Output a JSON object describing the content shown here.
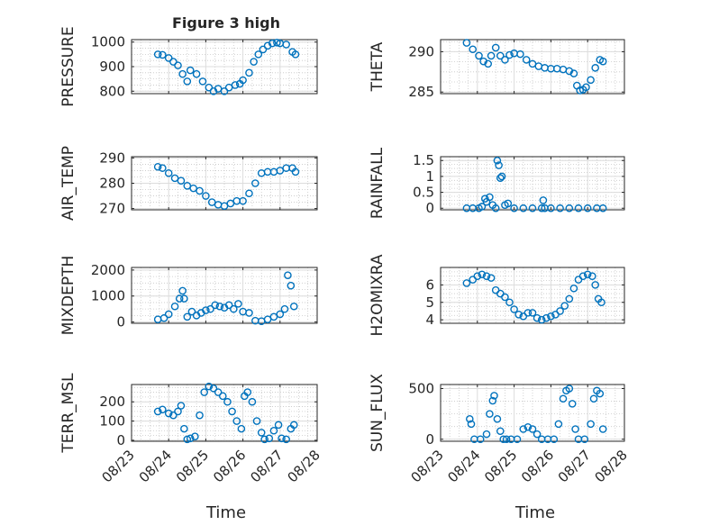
{
  "chart_data": {
    "title": "Figure 3 high",
    "xlabel": "Time",
    "type": "scatter",
    "marker": "open-circle",
    "marker_color": "#0072BD",
    "grid": "on",
    "x_ticks": [
      "08/23",
      "08/24",
      "08/25",
      "08/26",
      "08/27",
      "08/28"
    ],
    "x_range": [
      "08/23",
      "08/28"
    ],
    "subplots": [
      {
        "ylabel": "PRESSURE",
        "ylim": [
          790,
          1010
        ],
        "yticks": [
          800,
          900,
          1000
        ],
        "ytick_labels": [
          "800",
          "900",
          "1000"
        ],
        "x": [
          "08/23 17:00",
          "08/23 20:00",
          "08/24 00:00",
          "08/24 03:00",
          "08/24 06:00",
          "08/24 09:00",
          "08/24 12:00",
          "08/24 14:00",
          "08/24 18:00",
          "08/24 22:00",
          "08/25 02:00",
          "08/25 05:00",
          "08/25 08:00",
          "08/25 12:00",
          "08/25 15:00",
          "08/25 19:00",
          "08/25 22:00",
          "08/26 00:00",
          "08/26 04:00",
          "08/26 07:00",
          "08/26 10:00",
          "08/26 13:00",
          "08/26 16:00",
          "08/26 19:00",
          "08/26 22:00",
          "08/27 00:00",
          "08/27 04:00",
          "08/27 08:00",
          "08/27 10:00"
        ],
        "y": [
          950,
          948,
          935,
          920,
          905,
          870,
          840,
          885,
          870,
          840,
          815,
          800,
          810,
          800,
          815,
          825,
          830,
          845,
          875,
          920,
          950,
          970,
          985,
          995,
          998,
          995,
          990,
          960,
          950
        ]
      },
      {
        "ylabel": "THETA",
        "ylim": [
          284.8,
          291.5
        ],
        "yticks": [
          285,
          290
        ],
        "ytick_labels": [
          "285",
          "290"
        ],
        "x": [
          "08/23 17:00",
          "08/23 21:00",
          "08/24 01:00",
          "08/24 04:00",
          "08/24 07:00",
          "08/24 09:00",
          "08/24 12:00",
          "08/24 15:00",
          "08/24 18:00",
          "08/24 21:00",
          "08/25 00:00",
          "08/25 04:00",
          "08/25 08:00",
          "08/25 12:00",
          "08/25 16:00",
          "08/25 20:00",
          "08/26 00:00",
          "08/26 04:00",
          "08/26 08:00",
          "08/26 12:00",
          "08/26 15:00",
          "08/26 17:00",
          "08/26 19:00",
          "08/26 21:00",
          "08/26 23:00",
          "08/27 02:00",
          "08/27 05:00",
          "08/27 08:00",
          "08/27 10:00"
        ],
        "y": [
          291.1,
          290.3,
          289.5,
          288.8,
          288.5,
          289.5,
          290.5,
          289.5,
          289.0,
          289.6,
          289.8,
          289.7,
          289.0,
          288.5,
          288.2,
          288.0,
          287.9,
          287.9,
          287.8,
          287.6,
          287.3,
          285.8,
          285.2,
          285.3,
          285.6,
          286.5,
          288.0,
          289.0,
          288.8
        ]
      },
      {
        "ylabel": "AIR_TEMP",
        "ylim": [
          269.5,
          290.5
        ],
        "yticks": [
          270,
          280,
          290
        ],
        "ytick_labels": [
          "270",
          "280",
          "290"
        ],
        "x": [
          "08/23 17:00",
          "08/23 20:00",
          "08/24 00:00",
          "08/24 04:00",
          "08/24 08:00",
          "08/24 12:00",
          "08/24 16:00",
          "08/24 20:00",
          "08/25 00:00",
          "08/25 04:00",
          "08/25 08:00",
          "08/25 12:00",
          "08/25 16:00",
          "08/25 20:00",
          "08/26 00:00",
          "08/26 04:00",
          "08/26 08:00",
          "08/26 12:00",
          "08/26 16:00",
          "08/26 20:00",
          "08/27 00:00",
          "08/27 04:00",
          "08/27 08:00",
          "08/27 10:00"
        ],
        "y": [
          286.5,
          286.0,
          284.0,
          282.0,
          281.0,
          279.0,
          278.0,
          277.0,
          275.0,
          272.5,
          271.5,
          271.0,
          272.0,
          273.0,
          273.0,
          276.0,
          280.0,
          284.0,
          284.5,
          284.5,
          285.0,
          286.0,
          286.0,
          284.5
        ]
      },
      {
        "ylabel": "RAINFALL",
        "ylim": [
          -0.05,
          1.62
        ],
        "yticks": [
          0,
          0.5,
          1,
          1.5
        ],
        "ytick_labels": [
          "0",
          "0.5",
          "1",
          "1.5"
        ],
        "x": [
          "08/23 17:00",
          "08/23 21:00",
          "08/24 01:00",
          "08/24 03:00",
          "08/24 05:00",
          "08/24 06:00",
          "08/24 08:00",
          "08/24 10:00",
          "08/24 12:00",
          "08/24 13:00",
          "08/24 14:00",
          "08/24 15:00",
          "08/24 16:00",
          "08/24 18:00",
          "08/24 20:00",
          "08/25 00:00",
          "08/25 06:00",
          "08/25 12:00",
          "08/25 18:00",
          "08/25 19:00",
          "08/25 20:00",
          "08/26 00:00",
          "08/26 06:00",
          "08/26 12:00",
          "08/26 18:00",
          "08/27 00:00",
          "08/27 06:00",
          "08/27 10:00"
        ],
        "y": [
          0,
          0,
          0,
          0.05,
          0.3,
          0.2,
          0.35,
          0.1,
          0,
          1.5,
          1.35,
          0.95,
          1.0,
          0.1,
          0.15,
          0,
          0,
          0,
          0,
          0.25,
          0,
          0,
          0,
          0,
          0,
          0,
          0,
          0
        ]
      },
      {
        "ylabel": "MIXDEPTH",
        "ylim": [
          -50,
          2100
        ],
        "yticks": [
          0,
          1000,
          2000
        ],
        "ytick_labels": [
          "0",
          "1000",
          "2000"
        ],
        "x": [
          "08/23 17:00",
          "08/23 21:00",
          "08/24 00:00",
          "08/24 04:00",
          "08/24 07:00",
          "08/24 09:00",
          "08/24 10:00",
          "08/24 12:00",
          "08/24 15:00",
          "08/24 18:00",
          "08/24 21:00",
          "08/25 00:00",
          "08/25 03:00",
          "08/25 06:00",
          "08/25 09:00",
          "08/25 12:00",
          "08/25 15:00",
          "08/25 18:00",
          "08/25 21:00",
          "08/26 00:00",
          "08/26 04:00",
          "08/26 08:00",
          "08/26 12:00",
          "08/26 16:00",
          "08/26 20:00",
          "08/27 00:00",
          "08/27 03:00",
          "08/27 05:00",
          "08/27 07:00",
          "08/27 09:00"
        ],
        "y": [
          100,
          150,
          300,
          600,
          900,
          1200,
          900,
          200,
          400,
          250,
          350,
          450,
          500,
          650,
          600,
          550,
          650,
          500,
          700,
          400,
          350,
          50,
          30,
          100,
          200,
          300,
          500,
          1800,
          1400,
          600
        ]
      },
      {
        "ylabel": "H2OMIXRA",
        "ylim": [
          3.8,
          7.0
        ],
        "yticks": [
          4,
          5,
          6
        ],
        "ytick_labels": [
          "4",
          "5",
          "6"
        ],
        "x": [
          "08/23 17:00",
          "08/23 21:00",
          "08/24 00:00",
          "08/24 03:00",
          "08/24 06:00",
          "08/24 09:00",
          "08/24 12:00",
          "08/24 15:00",
          "08/24 18:00",
          "08/24 21:00",
          "08/25 00:00",
          "08/25 03:00",
          "08/25 06:00",
          "08/25 09:00",
          "08/25 12:00",
          "08/25 15:00",
          "08/25 18:00",
          "08/25 21:00",
          "08/26 00:00",
          "08/26 03:00",
          "08/26 06:00",
          "08/26 09:00",
          "08/26 12:00",
          "08/26 15:00",
          "08/26 18:00",
          "08/26 21:00",
          "08/27 00:00",
          "08/27 03:00",
          "08/27 05:00",
          "08/27 07:00",
          "08/27 09:00"
        ],
        "y": [
          6.1,
          6.3,
          6.5,
          6.6,
          6.5,
          6.4,
          5.7,
          5.5,
          5.3,
          5.0,
          4.6,
          4.3,
          4.2,
          4.4,
          4.4,
          4.1,
          4.0,
          4.1,
          4.2,
          4.3,
          4.5,
          4.8,
          5.2,
          5.8,
          6.3,
          6.5,
          6.6,
          6.5,
          6.0,
          5.2,
          5.0
        ]
      },
      {
        "ylabel": "TERR_MSL",
        "ylim": [
          -5,
          290
        ],
        "yticks": [
          0,
          100,
          200
        ],
        "ytick_labels": [
          "0",
          "100",
          "200"
        ],
        "x": [
          "08/23 17:00",
          "08/23 20:00",
          "08/24 00:00",
          "08/24 03:00",
          "08/24 06:00",
          "08/24 08:00",
          "08/24 10:00",
          "08/24 12:00",
          "08/24 14:00",
          "08/24 17:00",
          "08/24 20:00",
          "08/24 23:00",
          "08/25 02:00",
          "08/25 05:00",
          "08/25 08:00",
          "08/25 11:00",
          "08/25 14:00",
          "08/25 17:00",
          "08/25 20:00",
          "08/25 23:00",
          "08/26 01:00",
          "08/26 03:00",
          "08/26 06:00",
          "08/26 09:00",
          "08/26 12:00",
          "08/26 14:00",
          "08/26 17:00",
          "08/26 20:00",
          "08/26 23:00",
          "08/27 01:00",
          "08/27 04:00",
          "08/27 07:00",
          "08/27 09:00"
        ],
        "y": [
          150,
          160,
          140,
          130,
          150,
          180,
          60,
          5,
          10,
          20,
          130,
          250,
          280,
          270,
          250,
          230,
          200,
          150,
          100,
          60,
          230,
          250,
          200,
          100,
          40,
          5,
          10,
          50,
          80,
          10,
          5,
          60,
          80
        ]
      },
      {
        "ylabel": "SUN_FLUX",
        "ylim": [
          -20,
          540
        ],
        "yticks": [
          0,
          500
        ],
        "ytick_labels": [
          "0",
          "500"
        ],
        "x": [
          "08/23 19:00",
          "08/23 20:00",
          "08/23 22:00",
          "08/24 02:00",
          "08/24 06:00",
          "08/24 08:00",
          "08/24 10:00",
          "08/24 11:00",
          "08/24 13:00",
          "08/24 15:00",
          "08/24 17:00",
          "08/24 19:00",
          "08/24 22:00",
          "08/25 02:00",
          "08/25 06:00",
          "08/25 09:00",
          "08/25 12:00",
          "08/25 15:00",
          "08/25 18:00",
          "08/25 22:00",
          "08/26 02:00",
          "08/26 05:00",
          "08/26 08:00",
          "08/26 10:00",
          "08/26 12:00",
          "08/26 14:00",
          "08/26 16:00",
          "08/26 18:00",
          "08/26 22:00",
          "08/27 02:00",
          "08/27 04:00",
          "08/27 06:00",
          "08/27 08:00",
          "08/27 10:00"
        ],
        "y": [
          200,
          150,
          0,
          0,
          50,
          250,
          380,
          430,
          200,
          80,
          0,
          0,
          0,
          0,
          100,
          120,
          100,
          50,
          0,
          0,
          0,
          150,
          400,
          480,
          500,
          350,
          100,
          0,
          0,
          150,
          400,
          480,
          450,
          100
        ]
      }
    ]
  }
}
